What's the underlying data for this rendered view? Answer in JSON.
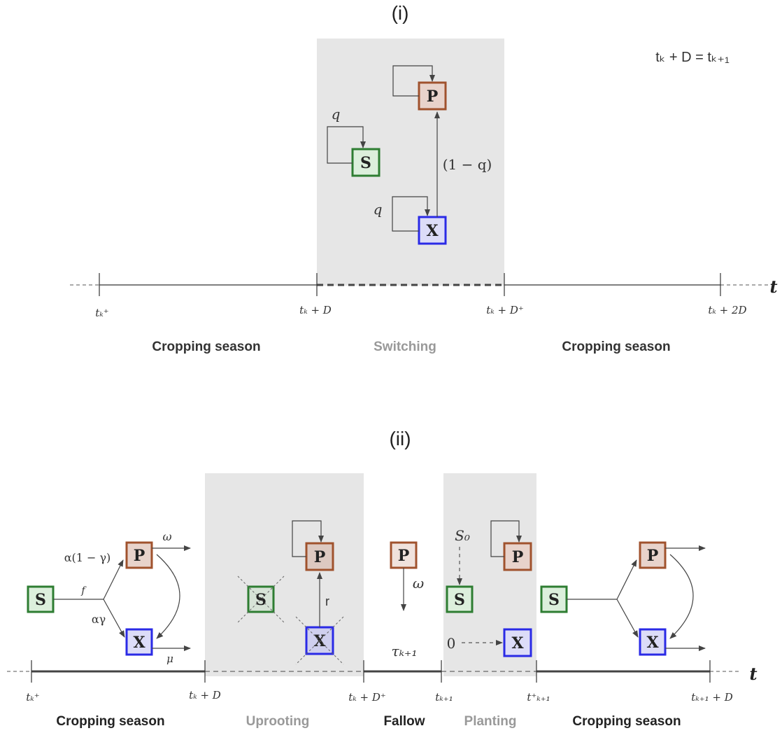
{
  "panel_i": {
    "title": "(i)",
    "relation": "tₖ + D = tₖ₊₁",
    "nodes": {
      "P": "P",
      "S": "S",
      "X": "X"
    },
    "rates": {
      "q_s": "q",
      "q_x": "q",
      "one_minus_q": "(1 − q)"
    },
    "axis_label": "t",
    "ticks": {
      "t1": "tₖ⁺",
      "t2": "tₖ + D",
      "t3": "tₖ + D⁺",
      "t4": "tₖ + 2D"
    },
    "phases": {
      "crop1": "Cropping season",
      "switch": "Switching",
      "crop2": "Cropping season"
    }
  },
  "panel_ii": {
    "title": "(ii)",
    "nodes": {
      "P": "P",
      "S": "S",
      "X": "X"
    },
    "rates": {
      "alpha_one_minus_gamma": "α(1 − γ)",
      "alpha_gamma": "αγ",
      "f": "f",
      "omega": "ω",
      "mu": "μ",
      "r": "r",
      "S0": "S₀",
      "zero": "0",
      "tau": "τₖ₊₁"
    },
    "axis_label": "t",
    "ticks": {
      "t1": "tₖ⁺",
      "t2": "tₖ + D",
      "t3": "tₖ + D⁺",
      "t4": "tₖ₊₁",
      "t5": "t⁺ₖ₊₁",
      "t6": "tₖ₊₁ + D"
    },
    "phases": {
      "crop1": "Cropping season",
      "uproot": "Uprooting",
      "fallow": "Fallow",
      "plant": "Planting",
      "crop2": "Cropping season"
    }
  },
  "colors": {
    "P_stroke": "#a0522d",
    "P_fill": "#e8d3cb",
    "S_stroke": "#2e7d32",
    "S_fill": "#dcefdc",
    "X_stroke": "#2a2ae6",
    "X_fill": "#dcdcf8",
    "shade": "#e6e6e6",
    "line": "#333333",
    "phase_dark": "#333333",
    "phase_light": "#999999"
  }
}
